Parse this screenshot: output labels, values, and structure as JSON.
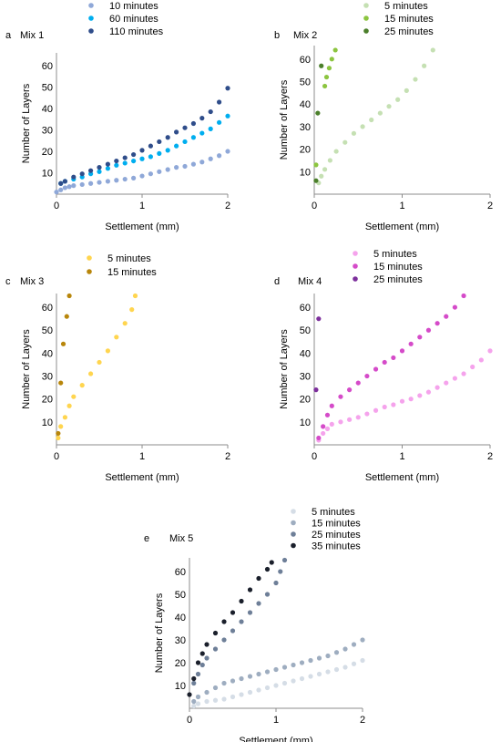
{
  "figure": {
    "panel_count": 5
  },
  "chart_data": [
    {
      "panel_label": "a",
      "type": "scatter",
      "title": "Mix 1",
      "xlabel": "Settlement (mm)",
      "ylabel": "Number of Layers",
      "xlim": [
        0,
        2
      ],
      "ylim": [
        0,
        66
      ],
      "xticks": [
        0,
        1,
        2
      ],
      "yticks": [
        10,
        20,
        30,
        40,
        50,
        60
      ],
      "grid": false,
      "legend_position": "top-center",
      "series": [
        {
          "name": "10 minutes",
          "color": "#8fa8d8",
          "points": [
            [
              0.0,
              1
            ],
            [
              0.05,
              2
            ],
            [
              0.1,
              3
            ],
            [
              0.15,
              3.5
            ],
            [
              0.2,
              4
            ],
            [
              0.3,
              4.5
            ],
            [
              0.4,
              5
            ],
            [
              0.5,
              5.5
            ],
            [
              0.6,
              6
            ],
            [
              0.7,
              6.5
            ],
            [
              0.8,
              7
            ],
            [
              0.9,
              7.5
            ],
            [
              1.0,
              8.5
            ],
            [
              1.1,
              9.5
            ],
            [
              1.2,
              10.5
            ],
            [
              1.3,
              11.5
            ],
            [
              1.4,
              12.5
            ],
            [
              1.5,
              13
            ],
            [
              1.6,
              14
            ],
            [
              1.7,
              15
            ],
            [
              1.8,
              16.5
            ],
            [
              1.9,
              18
            ],
            [
              2.0,
              20
            ]
          ]
        },
        {
          "name": "60 minutes",
          "color": "#00aeef",
          "points": [
            [
              0.05,
              5
            ],
            [
              0.1,
              6
            ],
            [
              0.2,
              7
            ],
            [
              0.3,
              8
            ],
            [
              0.4,
              9.5
            ],
            [
              0.5,
              10.5
            ],
            [
              0.6,
              12
            ],
            [
              0.7,
              13.5
            ],
            [
              0.8,
              14.5
            ],
            [
              0.9,
              15.5
            ],
            [
              1.0,
              16.5
            ],
            [
              1.1,
              17.5
            ],
            [
              1.2,
              19
            ],
            [
              1.3,
              20.5
            ],
            [
              1.4,
              22.5
            ],
            [
              1.5,
              24.5
            ],
            [
              1.6,
              26.5
            ],
            [
              1.7,
              28.5
            ],
            [
              1.8,
              30.5
            ],
            [
              1.9,
              33.5
            ],
            [
              2.0,
              36.5
            ]
          ]
        },
        {
          "name": "110 minutes",
          "color": "#2f4d8a",
          "points": [
            [
              0.05,
              5
            ],
            [
              0.1,
              6
            ],
            [
              0.2,
              8
            ],
            [
              0.3,
              9.5
            ],
            [
              0.4,
              11
            ],
            [
              0.5,
              12.5
            ],
            [
              0.6,
              14
            ],
            [
              0.7,
              15.5
            ],
            [
              0.8,
              17
            ],
            [
              0.9,
              18.5
            ],
            [
              1.0,
              20.5
            ],
            [
              1.1,
              22.5
            ],
            [
              1.2,
              24.5
            ],
            [
              1.3,
              26.5
            ],
            [
              1.4,
              29
            ],
            [
              1.5,
              31
            ],
            [
              1.6,
              33
            ],
            [
              1.7,
              35.5
            ],
            [
              1.8,
              38.5
            ],
            [
              1.9,
              43
            ],
            [
              2.0,
              49.5
            ]
          ]
        }
      ]
    },
    {
      "panel_label": "b",
      "type": "scatter",
      "title": "Mix 2",
      "xlabel": "Settlement (mm)",
      "ylabel": "Number of Layers",
      "xlim": [
        0,
        2
      ],
      "ylim": [
        0,
        66
      ],
      "xticks": [
        0,
        1,
        2
      ],
      "yticks": [
        10,
        20,
        30,
        40,
        50,
        60
      ],
      "grid": false,
      "legend_position": "top-center",
      "series": [
        {
          "name": "5 minutes",
          "color": "#c5e0b3",
          "points": [
            [
              0.05,
              5
            ],
            [
              0.08,
              8
            ],
            [
              0.12,
              11
            ],
            [
              0.18,
              15
            ],
            [
              0.25,
              19
            ],
            [
              0.35,
              23
            ],
            [
              0.45,
              27
            ],
            [
              0.55,
              30
            ],
            [
              0.65,
              33
            ],
            [
              0.75,
              36
            ],
            [
              0.85,
              39
            ],
            [
              0.95,
              42
            ],
            [
              1.05,
              46
            ],
            [
              1.15,
              51
            ],
            [
              1.25,
              57
            ],
            [
              1.35,
              64
            ]
          ]
        },
        {
          "name": "15 minutes",
          "color": "#8cc540",
          "points": [
            [
              0.02,
              13
            ],
            [
              0.12,
              48
            ],
            [
              0.14,
              52
            ],
            [
              0.17,
              56
            ],
            [
              0.2,
              60
            ],
            [
              0.24,
              64
            ]
          ]
        },
        {
          "name": "25 minutes",
          "color": "#4b7f2b",
          "points": [
            [
              0.02,
              6
            ],
            [
              0.04,
              36
            ],
            [
              0.08,
              57
            ]
          ]
        }
      ]
    },
    {
      "panel_label": "c",
      "type": "scatter",
      "title": "Mix 3",
      "xlabel": "Settlement (mm)",
      "ylabel": "Number of Layers",
      "xlim": [
        0,
        2
      ],
      "ylim": [
        0,
        66
      ],
      "xticks": [
        0,
        1,
        2
      ],
      "yticks": [
        10,
        20,
        30,
        40,
        50,
        60
      ],
      "grid": false,
      "legend_position": "top-center",
      "series": [
        {
          "name": "5 minutes",
          "color": "#ffd54f",
          "points": [
            [
              0.02,
              3
            ],
            [
              0.05,
              8
            ],
            [
              0.1,
              12
            ],
            [
              0.15,
              17
            ],
            [
              0.2,
              21
            ],
            [
              0.3,
              26
            ],
            [
              0.4,
              31
            ],
            [
              0.5,
              36
            ],
            [
              0.6,
              41
            ],
            [
              0.7,
              47
            ],
            [
              0.8,
              53
            ],
            [
              0.88,
              59
            ],
            [
              0.92,
              65
            ]
          ]
        },
        {
          "name": "15 minutes",
          "color": "#b8860b",
          "points": [
            [
              0.02,
              5
            ],
            [
              0.05,
              27
            ],
            [
              0.08,
              44
            ],
            [
              0.12,
              56
            ],
            [
              0.15,
              65
            ]
          ]
        }
      ]
    },
    {
      "panel_label": "d",
      "type": "scatter",
      "title": "Mix 4",
      "xlabel": "Settlement (mm)",
      "ylabel": "Number of Layers",
      "xlim": [
        0,
        2
      ],
      "ylim": [
        0,
        66
      ],
      "xticks": [
        0,
        1,
        2
      ],
      "yticks": [
        10,
        20,
        30,
        40,
        50,
        60
      ],
      "grid": false,
      "legend_position": "top-center",
      "series": [
        {
          "name": "5 minutes",
          "color": "#f5a3ec",
          "points": [
            [
              0.05,
              2
            ],
            [
              0.1,
              5
            ],
            [
              0.15,
              7
            ],
            [
              0.2,
              9
            ],
            [
              0.3,
              10
            ],
            [
              0.4,
              11
            ],
            [
              0.5,
              12
            ],
            [
              0.6,
              13.5
            ],
            [
              0.7,
              15
            ],
            [
              0.8,
              16.5
            ],
            [
              0.9,
              17.5
            ],
            [
              1.0,
              19
            ],
            [
              1.1,
              20
            ],
            [
              1.2,
              21.5
            ],
            [
              1.3,
              23
            ],
            [
              1.4,
              25
            ],
            [
              1.5,
              27
            ],
            [
              1.6,
              29
            ],
            [
              1.7,
              31
            ],
            [
              1.8,
              34
            ],
            [
              1.9,
              37
            ],
            [
              2.0,
              41
            ]
          ]
        },
        {
          "name": "15 minutes",
          "color": "#d54bc9",
          "points": [
            [
              0.05,
              3
            ],
            [
              0.1,
              8
            ],
            [
              0.15,
              13
            ],
            [
              0.2,
              17
            ],
            [
              0.3,
              21
            ],
            [
              0.4,
              24
            ],
            [
              0.5,
              27
            ],
            [
              0.6,
              30
            ],
            [
              0.7,
              33
            ],
            [
              0.8,
              36
            ],
            [
              0.9,
              38
            ],
            [
              1.0,
              41
            ],
            [
              1.1,
              44
            ],
            [
              1.2,
              47
            ],
            [
              1.3,
              50
            ],
            [
              1.4,
              53
            ],
            [
              1.5,
              56
            ],
            [
              1.6,
              60
            ],
            [
              1.7,
              65
            ]
          ]
        },
        {
          "name": "25 minutes",
          "color": "#7d2f9c",
          "points": [
            [
              0.02,
              24
            ],
            [
              0.05,
              55
            ]
          ]
        }
      ]
    },
    {
      "panel_label": "e",
      "type": "scatter",
      "title": "Mix 5",
      "xlabel": "Settlement (mm)",
      "ylabel": "Number of Layers",
      "xlim": [
        0,
        2
      ],
      "ylim": [
        0,
        66
      ],
      "xticks": [
        0,
        1,
        2
      ],
      "yticks": [
        10,
        20,
        30,
        40,
        50,
        60
      ],
      "grid": false,
      "legend_position": "top-right",
      "series": [
        {
          "name": "5 minutes",
          "color": "#d5dde6",
          "points": [
            [
              0.05,
              1
            ],
            [
              0.1,
              2
            ],
            [
              0.2,
              3
            ],
            [
              0.3,
              3.5
            ],
            [
              0.4,
              4
            ],
            [
              0.5,
              5
            ],
            [
              0.6,
              6
            ],
            [
              0.7,
              7
            ],
            [
              0.8,
              8
            ],
            [
              0.9,
              9
            ],
            [
              1.0,
              10
            ],
            [
              1.1,
              11
            ],
            [
              1.2,
              12
            ],
            [
              1.3,
              13
            ],
            [
              1.4,
              14
            ],
            [
              1.5,
              15
            ],
            [
              1.6,
              16
            ],
            [
              1.7,
              17
            ],
            [
              1.8,
              18
            ],
            [
              1.9,
              19.5
            ],
            [
              2.0,
              21
            ]
          ]
        },
        {
          "name": "15 minutes",
          "color": "#9eadc0",
          "points": [
            [
              0.05,
              3
            ],
            [
              0.1,
              5
            ],
            [
              0.2,
              7
            ],
            [
              0.3,
              9
            ],
            [
              0.4,
              11
            ],
            [
              0.5,
              12
            ],
            [
              0.6,
              13
            ],
            [
              0.7,
              14
            ],
            [
              0.8,
              15
            ],
            [
              0.9,
              16
            ],
            [
              1.0,
              17
            ],
            [
              1.1,
              18
            ],
            [
              1.2,
              19
            ],
            [
              1.3,
              20
            ],
            [
              1.4,
              21
            ],
            [
              1.5,
              22
            ],
            [
              1.6,
              23
            ],
            [
              1.7,
              24.5
            ],
            [
              1.8,
              26
            ],
            [
              1.9,
              28
            ],
            [
              2.0,
              30
            ]
          ]
        },
        {
          "name": "25 minutes",
          "color": "#6e7f98",
          "points": [
            [
              0.05,
              11
            ],
            [
              0.1,
              15
            ],
            [
              0.15,
              19
            ],
            [
              0.2,
              22
            ],
            [
              0.3,
              26
            ],
            [
              0.4,
              30
            ],
            [
              0.5,
              34
            ],
            [
              0.6,
              38
            ],
            [
              0.7,
              42
            ],
            [
              0.8,
              46
            ],
            [
              0.9,
              50
            ],
            [
              1.0,
              55
            ],
            [
              1.05,
              60
            ],
            [
              1.1,
              65
            ]
          ]
        },
        {
          "name": "35 minutes",
          "color": "#1a1f2b",
          "points": [
            [
              0.0,
              6
            ],
            [
              0.05,
              13
            ],
            [
              0.1,
              20
            ],
            [
              0.15,
              24
            ],
            [
              0.2,
              28
            ],
            [
              0.3,
              33
            ],
            [
              0.4,
              38
            ],
            [
              0.5,
              42
            ],
            [
              0.6,
              47
            ],
            [
              0.7,
              52
            ],
            [
              0.8,
              57
            ],
            [
              0.9,
              61
            ],
            [
              0.95,
              64
            ]
          ]
        }
      ]
    }
  ]
}
